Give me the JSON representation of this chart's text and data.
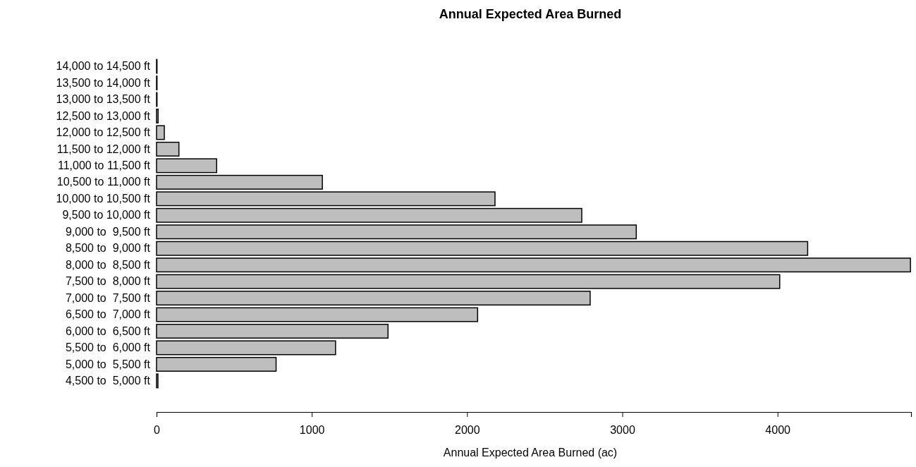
{
  "chart_data": {
    "type": "bar",
    "orientation": "horizontal",
    "title": "Annual Expected Area Burned",
    "xlabel": "Annual Expected Area Burned (ac)",
    "categories": [
      "14,000 to 14,500 ft",
      "13,500 to 14,000 ft",
      "13,000 to 13,500 ft",
      "12,500 to 13,000 ft",
      "12,000 to 12,500 ft",
      "11,500 to 12,000 ft",
      "11,000 to 11,500 ft",
      "10,500 to 11,000 ft",
      "10,000 to 10,500 ft",
      "9,500 to 10,000 ft",
      "9,000 to  9,500 ft",
      "8,500 to  9,000 ft",
      "8,000 to  8,500 ft",
      "7,500 to  8,000 ft",
      "7,000 to  7,500 ft",
      "6,500 to  7,000 ft",
      "6,000 to  6,500 ft",
      "5,500 to  6,000 ft",
      "5,000 to  5,500 ft",
      "4,500 to  5,000 ft"
    ],
    "values": [
      3,
      3,
      3,
      10,
      50,
      144,
      387,
      1068,
      2180,
      2739,
      3090,
      4194,
      4856,
      4014,
      2793,
      2068,
      1491,
      1153,
      770,
      9
    ],
    "color": "#bebebe",
    "xlim": [
      0,
      4860
    ],
    "xticks": [
      0,
      1000,
      2000,
      3000,
      4000
    ],
    "grid": false
  }
}
